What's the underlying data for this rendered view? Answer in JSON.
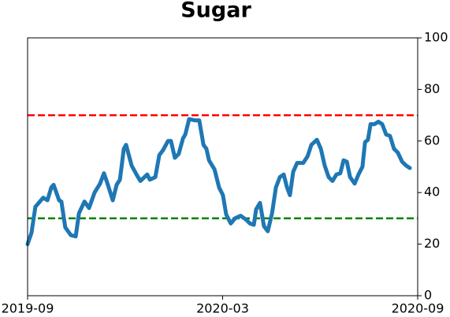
{
  "chart_data": {
    "type": "line",
    "title": "Sugar",
    "x": [
      0,
      0.12,
      0.24,
      0.48,
      0.61,
      0.73,
      0.8,
      0.97,
      1.04,
      1.16,
      1.33,
      1.48,
      1.58,
      1.75,
      1.89,
      2.06,
      2.23,
      2.35,
      2.47,
      2.62,
      2.74,
      2.84,
      2.96,
      3.03,
      3.2,
      3.35,
      3.47,
      3.68,
      3.76,
      3.93,
      4.05,
      4.17,
      4.32,
      4.41,
      4.53,
      4.65,
      4.78,
      4.85,
      4.97,
      5.14,
      5.28,
      5.41,
      5.5,
      5.58,
      5.75,
      5.89,
      6.01,
      6.11,
      6.25,
      6.38,
      6.55,
      6.72,
      6.84,
      6.96,
      7.03,
      7.15,
      7.27,
      7.39,
      7.52,
      7.64,
      7.76,
      7.88,
      7.98,
      8.07,
      8.17,
      8.29,
      8.48,
      8.61,
      8.73,
      8.9,
      9.02,
      9.14,
      9.26,
      9.38,
      9.5,
      9.62,
      9.72,
      9.82,
      9.92,
      10.06,
      10.18,
      10.3,
      10.38,
      10.47,
      10.55,
      10.67,
      10.79,
      10.91,
      11.03,
      11.15,
      11.27,
      11.39,
      11.52,
      11.64,
      11.76
    ],
    "values": [
      20,
      24.5,
      34.5,
      38,
      37,
      42,
      43,
      37,
      36.5,
      26.5,
      23.5,
      23,
      32,
      36.5,
      34,
      40,
      43.5,
      47.5,
      43,
      37,
      43,
      45,
      57,
      58.5,
      50.5,
      47,
      44.5,
      47,
      45,
      46,
      54.5,
      56.5,
      60,
      60,
      53.5,
      55,
      61,
      62.5,
      68.5,
      68,
      68,
      58.5,
      57,
      52.5,
      49,
      42,
      39,
      31.5,
      28,
      30,
      31,
      29.5,
      28,
      27.5,
      33.5,
      36,
      27,
      25,
      32,
      42,
      46,
      47,
      42,
      39,
      48,
      51.5,
      51.5,
      54,
      58.5,
      60.5,
      57,
      50.5,
      46,
      44.5,
      47,
      47.5,
      52.5,
      52,
      46,
      43.5,
      47,
      50,
      59.5,
      60.5,
      66.5,
      66.5,
      67.5,
      66.5,
      62.5,
      62,
      57,
      55.5,
      52,
      50.5,
      49.5
    ],
    "color": "#1f77b4",
    "xlim": [
      0,
      12
    ],
    "xticks": [
      {
        "value": 0,
        "label": "2019-09"
      },
      {
        "value": 6,
        "label": "2020-03"
      },
      {
        "value": 12,
        "label": "2020-09"
      }
    ],
    "ylim": [
      0,
      100
    ],
    "yticks": [
      0,
      20,
      40,
      60,
      80,
      100
    ],
    "y_axis_side": "right",
    "hlines": [
      {
        "value": 70,
        "color": "#ff0000"
      },
      {
        "value": 30,
        "color": "#008000"
      }
    ]
  }
}
